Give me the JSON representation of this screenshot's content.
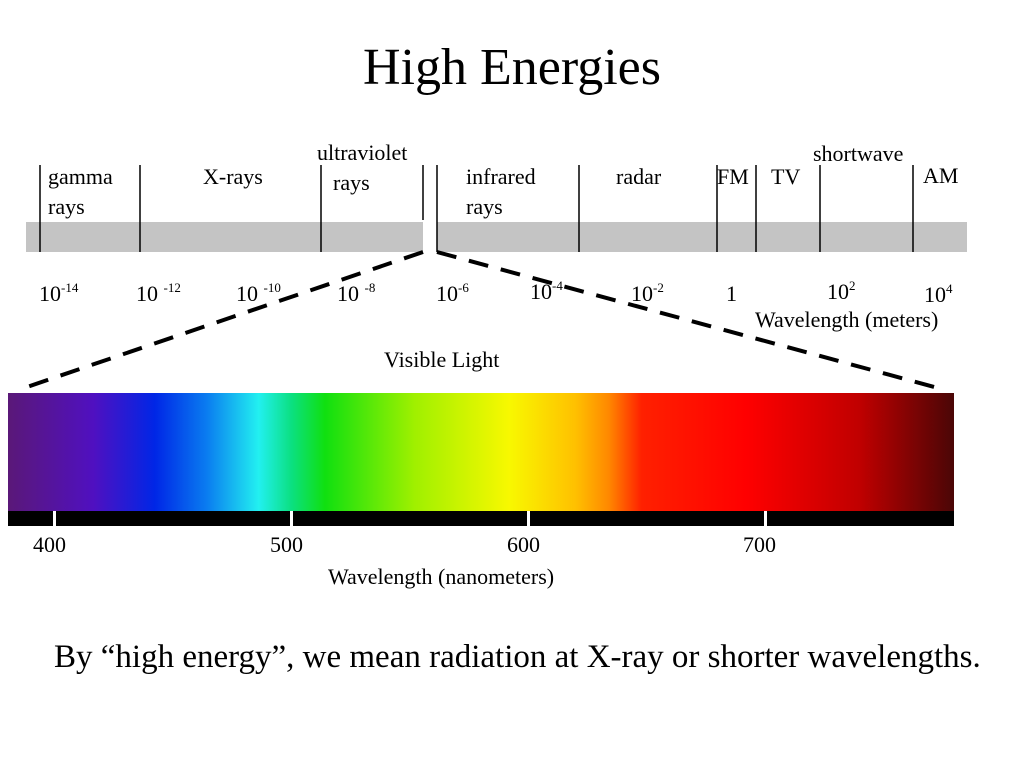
{
  "slide": {
    "title": "High Energies",
    "caption": "By “high energy”, we mean radiation at X-ray or shorter wavelengths."
  },
  "em_spectrum": {
    "bands": [
      {
        "name": "gamma rays",
        "lines": [
          "gamma",
          "rays"
        ]
      },
      {
        "name": "X-rays",
        "lines": [
          "X-rays"
        ]
      },
      {
        "name": "ultraviolet rays",
        "lines": [
          "ultraviolet",
          "rays"
        ]
      },
      {
        "name": "infrared rays",
        "lines": [
          "infrared",
          "rays"
        ]
      },
      {
        "name": "radar",
        "lines": [
          "radar"
        ]
      },
      {
        "name": "FM",
        "lines": [
          "FM"
        ]
      },
      {
        "name": "TV",
        "lines": [
          "TV"
        ]
      },
      {
        "name": "shortwave",
        "lines": [
          "shortwave"
        ]
      },
      {
        "name": "AM",
        "lines": [
          "AM"
        ]
      }
    ],
    "ticks": [
      {
        "base": "10",
        "exp": "-14"
      },
      {
        "base": "10 ",
        "exp": "-12"
      },
      {
        "base": "10 ",
        "exp": "-10"
      },
      {
        "base": "10 ",
        "exp": "-8"
      },
      {
        "base": "10",
        "exp": "-6"
      },
      {
        "base": "10",
        "exp": "-4"
      },
      {
        "base": "10",
        "exp": "-2"
      },
      {
        "base": "1",
        "exp": ""
      },
      {
        "base": "10",
        "exp": "2"
      },
      {
        "base": "10",
        "exp": "4"
      }
    ],
    "axis_label": "Wavelength (meters)"
  },
  "visible_light": {
    "title": "Visible Light",
    "ticks": [
      "400",
      "500",
      "600",
      "700"
    ],
    "axis_label": "Wavelength (nanometers)",
    "range_nm": [
      380,
      780
    ],
    "colors": {
      "violet": "#5a1878",
      "blue": "#0026e6",
      "cyan": "#22f0f0",
      "green": "#10e010",
      "yellow": "#f8f800",
      "orange": "#ff8800",
      "red": "#ff0000",
      "dark_red": "#4a0606"
    }
  },
  "colors": {
    "bar_gray": "#c4c4c4",
    "text": "#000000",
    "background": "#ffffff"
  }
}
